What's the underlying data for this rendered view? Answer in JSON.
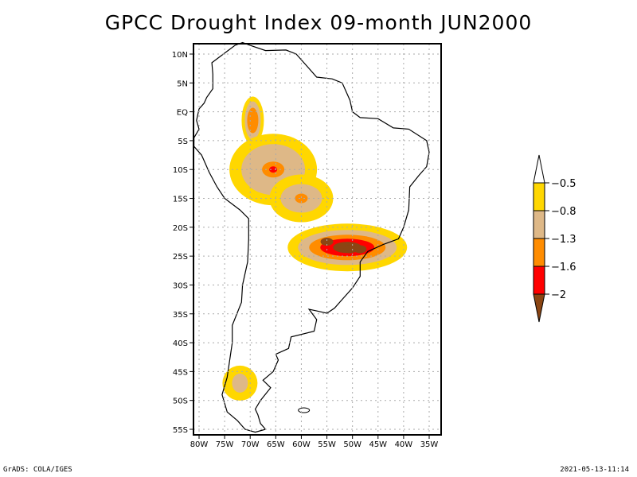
{
  "title": "GPCC Drought Index 09-month JUN2000",
  "map": {
    "region": "South America",
    "lon_range": [
      -81,
      -34
    ],
    "lat_range": [
      12,
      -56
    ],
    "x_ticks": [
      {
        "lon": -80,
        "label": "80W"
      },
      {
        "lon": -75,
        "label": "75W"
      },
      {
        "lon": -70,
        "label": "70W"
      },
      {
        "lon": -65,
        "label": "65W"
      },
      {
        "lon": -60,
        "label": "60W"
      },
      {
        "lon": -55,
        "label": "55W"
      },
      {
        "lon": -50,
        "label": "50W"
      },
      {
        "lon": -45,
        "label": "45W"
      },
      {
        "lon": -40,
        "label": "40W"
      },
      {
        "lon": -35,
        "label": "35W"
      }
    ],
    "y_ticks": [
      {
        "lat": 10,
        "label": "10N"
      },
      {
        "lat": 5,
        "label": "5N"
      },
      {
        "lat": 0,
        "label": "EQ"
      },
      {
        "lat": -5,
        "label": "5S"
      },
      {
        "lat": -10,
        "label": "10S"
      },
      {
        "lat": -15,
        "label": "15S"
      },
      {
        "lat": -20,
        "label": "20S"
      },
      {
        "lat": -25,
        "label": "25S"
      },
      {
        "lat": -30,
        "label": "30S"
      },
      {
        "lat": -35,
        "label": "35S"
      },
      {
        "lat": -40,
        "label": "40S"
      },
      {
        "lat": -45,
        "label": "45S"
      },
      {
        "lat": -50,
        "label": "50S"
      },
      {
        "lat": -55,
        "label": "55S"
      }
    ],
    "drought_regions": [
      {
        "name": "northwest-amazon",
        "level": 2,
        "lon": -69.5,
        "lat": -1.5
      },
      {
        "name": "central-west-brazil",
        "level": 3,
        "lon": -65.5,
        "lat": -10
      },
      {
        "name": "bolivia-east",
        "level": 2,
        "lon": -60,
        "lat": -15
      },
      {
        "name": "parana-sao-paulo",
        "level": 5,
        "lon": -51,
        "lat": -23.5
      },
      {
        "name": "patagonia-chile",
        "level": 1,
        "lon": -72,
        "lat": -47
      }
    ]
  },
  "colorbar": {
    "levels": [
      {
        "label": "-0.5",
        "color": "#ffffff"
      },
      {
        "label": "-0.8",
        "color": "#ffd700"
      },
      {
        "label": "-1.3",
        "color": "#deb887"
      },
      {
        "label": "-1.6",
        "color": "#ff8c00"
      },
      {
        "label": "-2",
        "color": "#ff0000"
      },
      {
        "label": "",
        "color": "#8b4513"
      }
    ]
  },
  "footer": {
    "left": "GrADS: COLA/IGES",
    "right": "2021-05-13-11:14"
  }
}
